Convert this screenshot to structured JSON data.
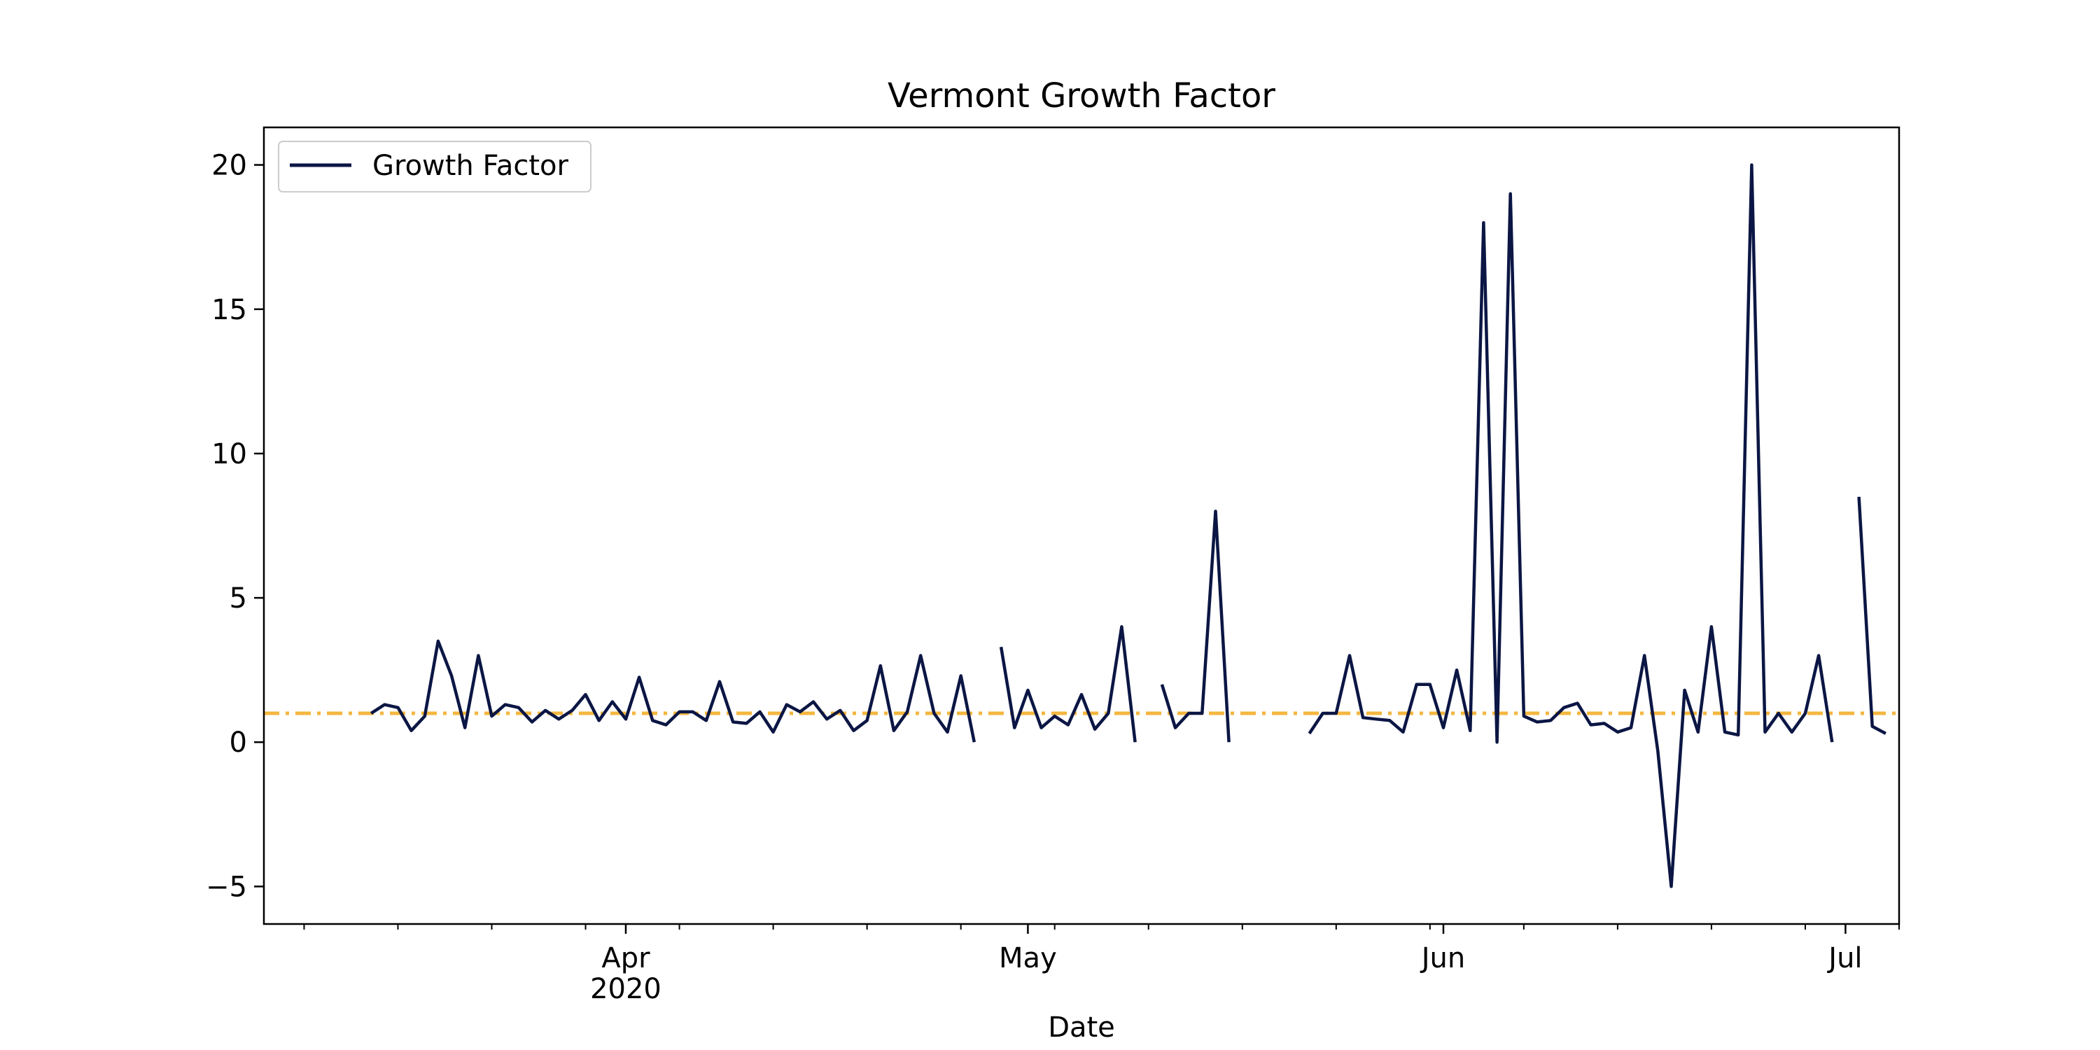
{
  "chart_data": {
    "type": "line",
    "title": "Vermont Growth Factor",
    "xlabel": "Date",
    "ylabel": "",
    "ylim": [
      -6.3,
      21.3
    ],
    "x_start": "2020-03-05",
    "x_end": "2020-07-05",
    "yticks": [
      -5,
      0,
      5,
      10,
      15,
      20
    ],
    "ytick_labels": [
      "−5",
      "0",
      "5",
      "10",
      "15",
      "20"
    ],
    "xticks": [
      {
        "date": "2020-04-01",
        "label": "Apr",
        "sublabel": "2020"
      },
      {
        "date": "2020-05-01",
        "label": "May",
        "sublabel": ""
      },
      {
        "date": "2020-06-01",
        "label": "Jun",
        "sublabel": ""
      },
      {
        "date": "2020-07-01",
        "label": "Jul",
        "sublabel": ""
      }
    ],
    "minor_ticks": [
      "2020-03-08",
      "2020-03-15",
      "2020-03-22",
      "2020-03-29",
      "2020-04-05",
      "2020-04-12",
      "2020-04-19",
      "2020-04-26",
      "2020-05-03",
      "2020-05-10",
      "2020-05-17",
      "2020-05-24",
      "2020-05-31",
      "2020-06-07",
      "2020-06-14",
      "2020-06-21",
      "2020-06-28",
      "2020-07-05"
    ],
    "reference_line": {
      "y": 1.0,
      "color": "#f4b63f",
      "style": "dashdot"
    },
    "legend": {
      "position": "top-left",
      "entries": [
        "Growth Factor"
      ]
    },
    "series": [
      {
        "name": "Growth Factor",
        "color": "#0b1644",
        "start_date": "2020-03-13",
        "values": [
          1.0,
          1.3,
          1.2,
          0.4,
          0.9,
          3.5,
          2.3,
          0.5,
          3.0,
          0.9,
          1.3,
          1.2,
          0.7,
          1.1,
          0.8,
          1.1,
          1.65,
          0.75,
          1.4,
          0.8,
          2.25,
          0.75,
          0.6,
          1.05,
          1.05,
          0.75,
          2.1,
          0.7,
          0.65,
          1.05,
          0.35,
          1.3,
          1.05,
          1.4,
          0.8,
          1.1,
          0.4,
          0.75,
          2.65,
          0.4,
          1.05,
          3.0,
          1.0,
          0.35,
          2.3,
          0.0,
          null,
          3.3,
          0.5,
          1.8,
          0.5,
          0.9,
          0.6,
          1.65,
          0.45,
          1.0,
          4.0,
          0.0,
          null,
          2.0,
          0.5,
          1.0,
          1.0,
          8.0,
          0.0,
          null,
          null,
          null,
          null,
          null,
          0.3,
          1.0,
          1.0,
          3.0,
          0.85,
          0.8,
          0.75,
          0.35,
          2.0,
          2.0,
          0.5,
          2.5,
          0.4,
          18.0,
          0.0,
          19.0,
          0.9,
          0.7,
          0.75,
          1.2,
          1.35,
          0.6,
          0.65,
          0.35,
          0.5,
          3.0,
          -0.3,
          -5.0,
          1.8,
          0.35,
          4.0,
          0.35,
          0.25,
          20.0,
          0.35,
          1.0,
          0.35,
          1.0,
          3.0,
          0.0,
          null,
          8.5,
          0.55,
          0.3
        ]
      }
    ]
  }
}
